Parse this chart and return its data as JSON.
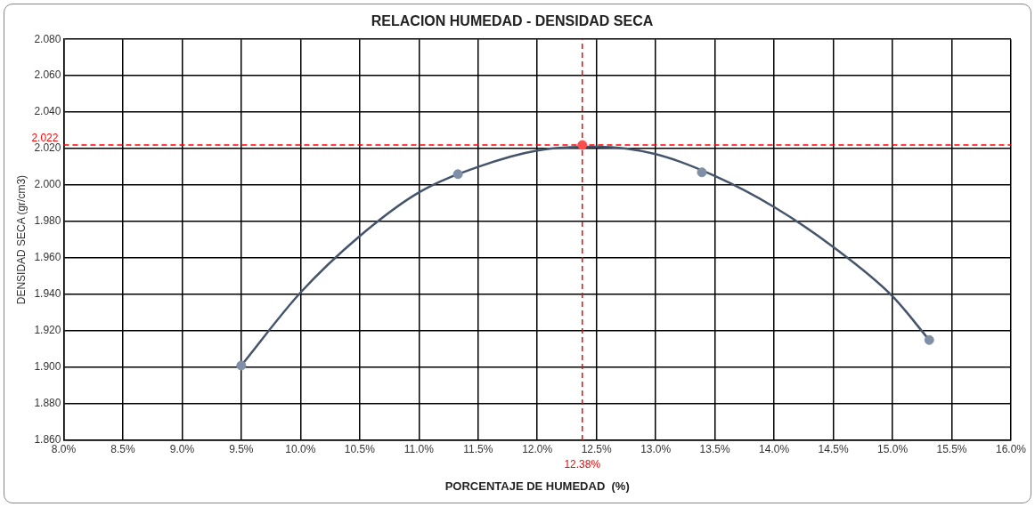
{
  "chart_data": {
    "type": "scatter",
    "title": "RELACION HUMEDAD - DENSIDAD SECA",
    "xlabel": "PORCENTAJE DE HUMEDAD  (%)",
    "ylabel": "DENSIDAD SECA (gr/cm3)",
    "series": [
      {
        "type": "line",
        "marker": "none",
        "color": "#44546a",
        "x": [
          9.5,
          10.0,
          10.5,
          11.0,
          11.5,
          12.0,
          12.5,
          13.0,
          13.5,
          14.0,
          14.5,
          15.0,
          15.31
        ],
        "values": [
          1.901,
          1.941,
          1.972,
          1.996,
          2.01,
          2.019,
          2.021,
          2.017,
          2.005,
          1.988,
          1.966,
          1.939,
          1.915
        ]
      },
      {
        "type": "scatter",
        "color": "#7f8fa6",
        "x": [
          9.5,
          11.33,
          13.39,
          15.31
        ],
        "values": [
          1.901,
          2.006,
          2.007,
          1.915
        ]
      },
      {
        "type": "scatter",
        "color": "#ff4d4d",
        "x": [
          12.38
        ],
        "values": [
          2.022
        ]
      }
    ],
    "xlim": [
      8.0,
      16.0
    ],
    "ylim": [
      1.86,
      2.08
    ],
    "xticks": [
      {
        "value": 8.0,
        "label": "8.0%"
      },
      {
        "value": 8.5,
        "label": "8.5%"
      },
      {
        "value": 9.0,
        "label": "9.0%"
      },
      {
        "value": 9.5,
        "label": "9.5%"
      },
      {
        "value": 10.0,
        "label": "10.0%"
      },
      {
        "value": 10.5,
        "label": "10.5%"
      },
      {
        "value": 11.0,
        "label": "11.0%"
      },
      {
        "value": 11.5,
        "label": "11.5%"
      },
      {
        "value": 12.0,
        "label": "12.0%"
      },
      {
        "value": 12.5,
        "label": "12.5%"
      },
      {
        "value": 13.0,
        "label": "13.0%"
      },
      {
        "value": 13.5,
        "label": "13.5%"
      },
      {
        "value": 14.0,
        "label": "14.0%"
      },
      {
        "value": 14.5,
        "label": "14.5%"
      },
      {
        "value": 15.0,
        "label": "15.0%"
      },
      {
        "value": 15.5,
        "label": "15.5%"
      },
      {
        "value": 16.0,
        "label": "16.0%"
      }
    ],
    "yticks": [
      {
        "value": 1.86,
        "label": "1.860"
      },
      {
        "value": 1.88,
        "label": "1.880"
      },
      {
        "value": 1.9,
        "label": "1.900"
      },
      {
        "value": 1.92,
        "label": "1.920"
      },
      {
        "value": 1.94,
        "label": "1.940"
      },
      {
        "value": 1.96,
        "label": "1.960"
      },
      {
        "value": 1.98,
        "label": "1.980"
      },
      {
        "value": 2.0,
        "label": "2.000"
      },
      {
        "value": 2.02,
        "label": "2.020"
      },
      {
        "value": 2.04,
        "label": "2.040"
      },
      {
        "value": 2.06,
        "label": "2.060"
      },
      {
        "value": 2.08,
        "label": "2.080"
      }
    ],
    "ref_lines": [
      {
        "axis": "y",
        "value": 2.022,
        "label": "2.022",
        "color": "#ff0000",
        "line_style": "dashed"
      },
      {
        "axis": "x",
        "value": 12.38,
        "label": "12.38%",
        "color": "#ff0000",
        "line_style": "dashed"
      }
    ],
    "grid": true,
    "legend": false,
    "marker": "circle",
    "line_style": "solid"
  }
}
